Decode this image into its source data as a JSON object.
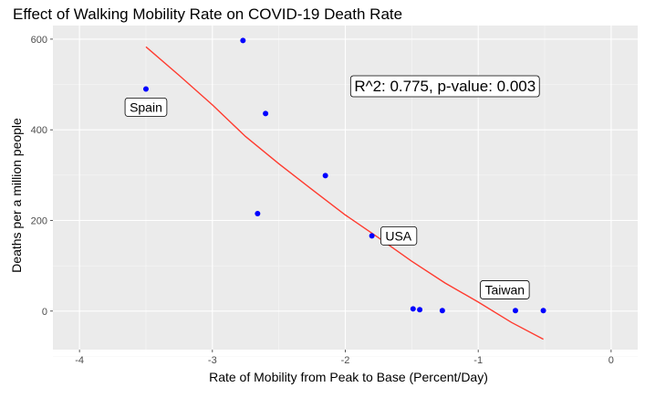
{
  "chart_data": {
    "type": "scatter",
    "title": "Effect of Walking Mobility Rate on COVID-19 Death Rate",
    "xlabel": "Rate of Mobility from Peak to Base (Percent/Day)",
    "ylabel": "Deaths per a million people",
    "xlim": [
      -4.2,
      0.2
    ],
    "ylim": [
      -85,
      630
    ],
    "x_ticks": [
      -4,
      -3,
      -2,
      -1,
      0
    ],
    "x_tick_labels": [
      "-4",
      "-3",
      "-2",
      "-1",
      "0"
    ],
    "y_ticks": [
      0,
      200,
      400,
      600
    ],
    "y_tick_labels": [
      "0",
      "200",
      "400",
      "600"
    ],
    "grid": true,
    "point_color": "#0000ff",
    "line_color": "#ff3b2f",
    "panel_color": "#ebebeb",
    "points": [
      {
        "x": -3.5,
        "y": 490
      },
      {
        "x": -2.77,
        "y": 597
      },
      {
        "x": -2.6,
        "y": 436
      },
      {
        "x": -2.66,
        "y": 215
      },
      {
        "x": -2.15,
        "y": 299
      },
      {
        "x": -1.8,
        "y": 166
      },
      {
        "x": -1.49,
        "y": 5
      },
      {
        "x": -1.44,
        "y": 3
      },
      {
        "x": -1.27,
        "y": 1
      },
      {
        "x": -0.72,
        "y": 1
      },
      {
        "x": -0.51,
        "y": 1
      }
    ],
    "trend_line": [
      {
        "x": -3.5,
        "y": 583
      },
      {
        "x": -3.25,
        "y": 520
      },
      {
        "x": -3.0,
        "y": 455
      },
      {
        "x": -2.75,
        "y": 385
      },
      {
        "x": -2.5,
        "y": 325
      },
      {
        "x": -2.25,
        "y": 268
      },
      {
        "x": -2.0,
        "y": 212
      },
      {
        "x": -1.75,
        "y": 162
      },
      {
        "x": -1.5,
        "y": 110
      },
      {
        "x": -1.25,
        "y": 62
      },
      {
        "x": -1.0,
        "y": 20
      },
      {
        "x": -0.75,
        "y": -25
      },
      {
        "x": -0.51,
        "y": -62
      }
    ],
    "annotations": [
      {
        "name": "label-spain",
        "text": "Spain",
        "x": -3.5,
        "y": 450
      },
      {
        "name": "label-usa",
        "text": "USA",
        "x": -1.6,
        "y": 166
      },
      {
        "name": "label-taiwan",
        "text": "Taiwan",
        "x": -0.8,
        "y": 47
      }
    ],
    "stat_annotation": {
      "text": "R^2: 0.775, p-value: 0.003",
      "x": -1.25,
      "y": 497
    }
  }
}
